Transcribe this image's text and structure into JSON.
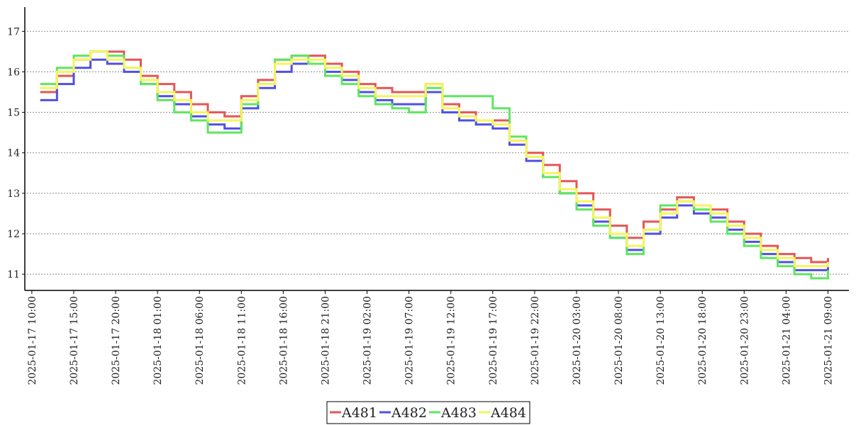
{
  "chart_data": {
    "type": "line",
    "step": true,
    "x": [
      "2025-01-17 11:00",
      "2025-01-17 13:00",
      "2025-01-17 15:00",
      "2025-01-17 17:00",
      "2025-01-17 19:00",
      "2025-01-17 21:00",
      "2025-01-17 23:00",
      "2025-01-18 01:00",
      "2025-01-18 03:00",
      "2025-01-18 05:00",
      "2025-01-18 07:00",
      "2025-01-18 09:00",
      "2025-01-18 11:00",
      "2025-01-18 13:00",
      "2025-01-18 15:00",
      "2025-01-18 17:00",
      "2025-01-18 19:00",
      "2025-01-18 21:00",
      "2025-01-18 23:00",
      "2025-01-19 01:00",
      "2025-01-19 03:00",
      "2025-01-19 05:00",
      "2025-01-19 07:00",
      "2025-01-19 09:00",
      "2025-01-19 11:00",
      "2025-01-19 13:00",
      "2025-01-19 15:00",
      "2025-01-19 17:00",
      "2025-01-19 19:00",
      "2025-01-19 21:00",
      "2025-01-19 23:00",
      "2025-01-20 01:00",
      "2025-01-20 03:00",
      "2025-01-20 05:00",
      "2025-01-20 07:00",
      "2025-01-20 09:00",
      "2025-01-20 11:00",
      "2025-01-20 13:00",
      "2025-01-20 15:00",
      "2025-01-20 17:00",
      "2025-01-20 19:00",
      "2025-01-20 21:00",
      "2025-01-20 23:00",
      "2025-01-21 01:00",
      "2025-01-21 03:00",
      "2025-01-21 05:00",
      "2025-01-21 07:00",
      "2025-01-21 09:00"
    ],
    "series": [
      {
        "name": "A481",
        "color": "#e65555",
        "values": [
          15.5,
          15.9,
          16.3,
          16.5,
          16.5,
          16.3,
          15.9,
          15.7,
          15.5,
          15.2,
          15.0,
          14.9,
          15.4,
          15.8,
          16.3,
          16.4,
          16.4,
          16.2,
          16.0,
          15.7,
          15.6,
          15.5,
          15.5,
          15.7,
          15.2,
          15.0,
          14.8,
          14.8,
          14.3,
          14.0,
          13.7,
          13.3,
          13.0,
          12.6,
          12.2,
          11.9,
          12.3,
          12.6,
          12.9,
          12.7,
          12.6,
          12.3,
          12.0,
          11.7,
          11.5,
          11.4,
          11.3,
          11.4
        ]
      },
      {
        "name": "A482",
        "color": "#4f4fe6",
        "values": [
          15.3,
          15.7,
          16.1,
          16.3,
          16.2,
          16.0,
          15.7,
          15.4,
          15.2,
          14.9,
          14.7,
          14.6,
          15.1,
          15.6,
          16.0,
          16.2,
          16.2,
          16.0,
          15.8,
          15.5,
          15.3,
          15.2,
          15.2,
          15.5,
          15.0,
          14.8,
          14.7,
          14.6,
          14.2,
          13.8,
          13.4,
          13.0,
          12.7,
          12.3,
          11.9,
          11.6,
          12.0,
          12.4,
          12.7,
          12.5,
          12.4,
          12.1,
          11.8,
          11.5,
          11.3,
          11.1,
          11.1,
          11.2
        ]
      },
      {
        "name": "A483",
        "color": "#5ee65e",
        "values": [
          15.7,
          16.1,
          16.4,
          16.5,
          16.4,
          16.1,
          15.7,
          15.3,
          15.0,
          14.8,
          14.5,
          14.5,
          15.2,
          15.7,
          16.3,
          16.4,
          16.2,
          15.9,
          15.7,
          15.4,
          15.2,
          15.1,
          15.0,
          15.6,
          15.4,
          15.4,
          15.4,
          15.1,
          14.4,
          13.9,
          13.4,
          13.0,
          12.6,
          12.2,
          11.9,
          11.5,
          12.1,
          12.7,
          12.8,
          12.6,
          12.3,
          12.0,
          11.7,
          11.4,
          11.2,
          11.0,
          10.9,
          11.1
        ]
      },
      {
        "name": "A484",
        "color": "#f5f55a",
        "values": [
          15.6,
          16.0,
          16.3,
          16.5,
          16.3,
          16.1,
          15.8,
          15.5,
          15.3,
          15.0,
          14.8,
          14.8,
          15.3,
          15.7,
          16.2,
          16.3,
          16.3,
          16.1,
          15.9,
          15.6,
          15.4,
          15.4,
          15.4,
          15.7,
          15.1,
          14.9,
          14.8,
          14.7,
          14.3,
          13.9,
          13.5,
          13.1,
          12.8,
          12.4,
          12.0,
          11.7,
          12.1,
          12.5,
          12.8,
          12.7,
          12.5,
          12.2,
          11.9,
          11.6,
          11.4,
          11.2,
          11.2,
          11.3
        ]
      }
    ],
    "xlim": [
      "2025-01-17 09:25",
      "2025-01-21 11:30"
    ],
    "xticks": [
      "2025-01-17 10:00",
      "2025-01-17 15:00",
      "2025-01-17 20:00",
      "2025-01-18 01:00",
      "2025-01-18 06:00",
      "2025-01-18 11:00",
      "2025-01-18 16:00",
      "2025-01-18 21:00",
      "2025-01-19 02:00",
      "2025-01-19 07:00",
      "2025-01-19 12:00",
      "2025-01-19 17:00",
      "2025-01-19 22:00",
      "2025-01-20 03:00",
      "2025-01-20 08:00",
      "2025-01-20 13:00",
      "2025-01-20 18:00",
      "2025-01-20 23:00",
      "2025-01-21 04:00",
      "2025-01-21 09:00"
    ],
    "ylim": [
      10.6,
      17.6
    ],
    "yticks": [
      11,
      12,
      13,
      14,
      15,
      16,
      17
    ],
    "grid": true,
    "legend": "bottom"
  }
}
